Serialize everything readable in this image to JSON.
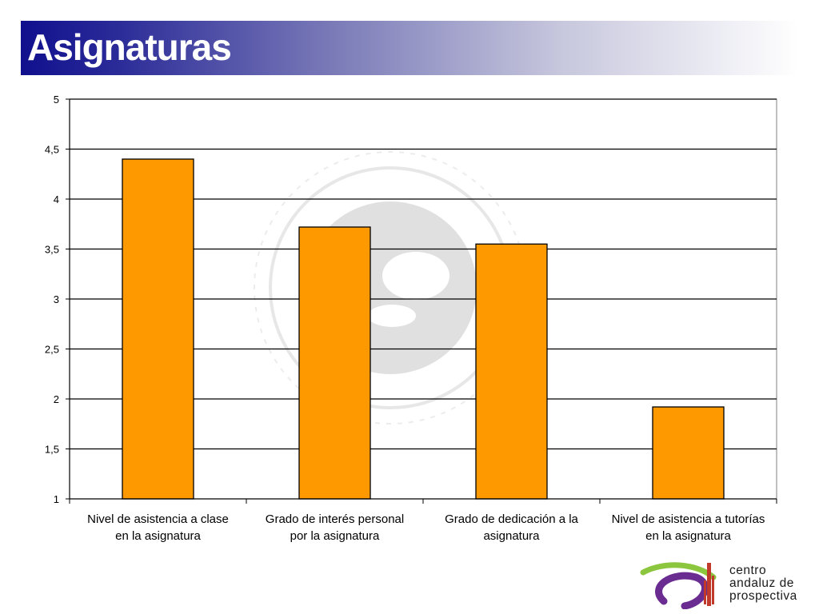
{
  "slide": {
    "title": "Asignaturas"
  },
  "chart_data": {
    "type": "bar",
    "categories": [
      "Nivel de asistencia a clase en la asignatura",
      "Grado de interés personal por la asignatura",
      "Grado de dedicación a la asignatura",
      "Nivel de asistencia a tutorías en la asignatura"
    ],
    "category_lines": [
      [
        "Nivel de asistencia a clase",
        "en la asignatura"
      ],
      [
        "Grado de interés personal",
        "por la asignatura"
      ],
      [
        "Grado de dedicación a la",
        "asignatura"
      ],
      [
        "Nivel de asistencia a tutorías",
        "en la asignatura"
      ]
    ],
    "values": [
      4.4,
      3.72,
      3.55,
      1.92
    ],
    "ylim": [
      1,
      5
    ],
    "yticks": [
      "1",
      "1,5",
      "2",
      "2,5",
      "3",
      "3,5",
      "4",
      "4,5",
      "5"
    ],
    "ytick_values": [
      1,
      1.5,
      2,
      2.5,
      3,
      3.5,
      4,
      4.5,
      5
    ],
    "title": "",
    "xlabel": "",
    "ylabel": "",
    "grid": true,
    "legend": "none",
    "bar_color": "#ff9900",
    "bar_stroke": "#000000"
  },
  "watermark": {
    "description_icon": "university-seal-icon",
    "color": "#c8c8c8"
  },
  "logo": {
    "line1": "centro",
    "line2": "andaluz de",
    "line3": "prospectiva",
    "colors": {
      "green": "#8cc63f",
      "purple": "#6b2c91",
      "red": "#c0392b"
    }
  }
}
